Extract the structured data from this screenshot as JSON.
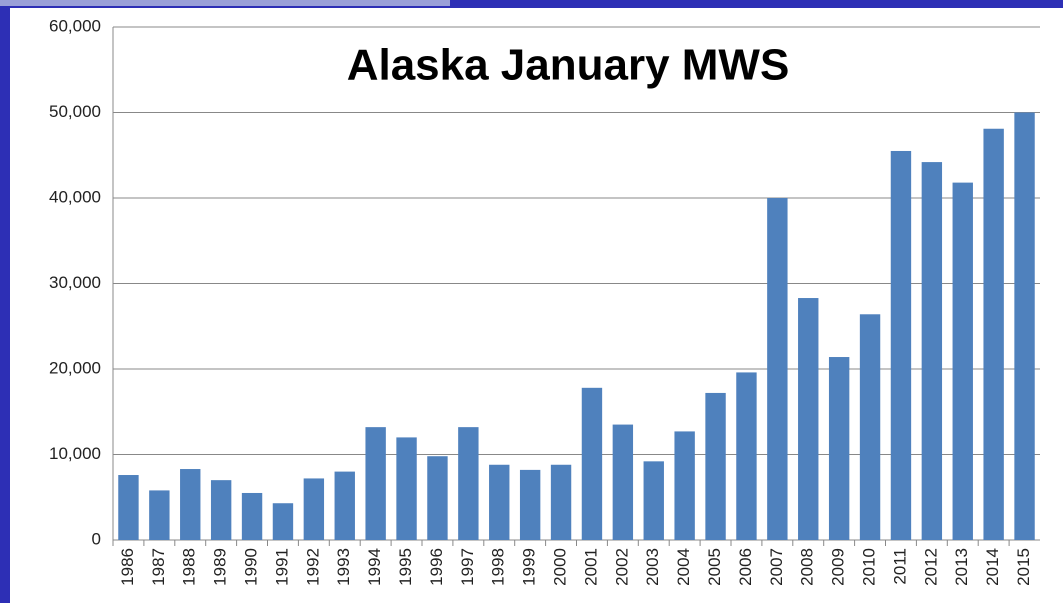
{
  "chart_data": {
    "type": "bar",
    "title": "Alaska January MWS",
    "categories": [
      "1986",
      "1987",
      "1988",
      "1989",
      "1990",
      "1991",
      "1992",
      "1993",
      "1994",
      "1995",
      "1996",
      "1997",
      "1998",
      "1999",
      "2000",
      "2001",
      "2002",
      "2003",
      "2004",
      "2005",
      "2006",
      "2007",
      "2008",
      "2009",
      "2010",
      "2011",
      "2012",
      "2013",
      "2014",
      "2015"
    ],
    "values": [
      7600,
      5800,
      8300,
      7000,
      5500,
      4300,
      7200,
      8000,
      13200,
      12000,
      9800,
      13200,
      8800,
      8200,
      8800,
      17800,
      13500,
      9200,
      12700,
      17200,
      19600,
      40000,
      28300,
      21400,
      26400,
      45500,
      44200,
      41800,
      48100,
      50000
    ],
    "color": "#4f81bd",
    "ylim": [
      0,
      60000
    ],
    "yticks": [
      0,
      {
        "value": 10000,
        "label": "10,000"
      },
      {
        "value": 20000,
        "label": "20,000"
      },
      {
        "value": 30000,
        "label": "30,000"
      },
      {
        "value": 40000,
        "label": "40,000"
      },
      {
        "value": 50000,
        "label": "50,000"
      },
      {
        "value": 60000,
        "label": "60,000"
      }
    ],
    "grid": true
  }
}
